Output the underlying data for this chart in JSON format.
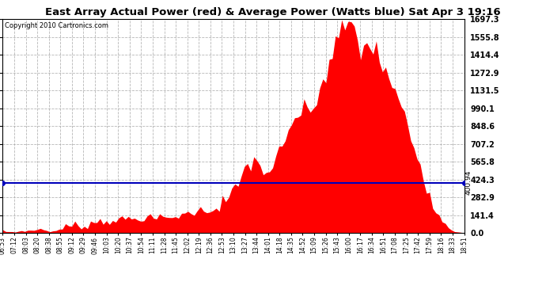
{
  "title": "East Array Actual Power (red) & Average Power (Watts blue) Sat Apr 3 19:16",
  "copyright": "Copyright 2010 Cartronics.com",
  "average_power": 400.94,
  "y_max": 1697.3,
  "y_ticks": [
    0.0,
    141.4,
    282.9,
    424.3,
    565.8,
    707.2,
    848.6,
    990.1,
    1131.5,
    1272.9,
    1414.4,
    1555.8,
    1697.3
  ],
  "background_color": "#ffffff",
  "fill_color": "#ff0000",
  "line_color": "#0000bb",
  "grid_color": "#aaaaaa",
  "title_fontsize": 9.5,
  "copyright_fontsize": 6,
  "tick_fontsize": 5.5,
  "ytick_fontsize": 7,
  "avg_label_fontsize": 6.5,
  "x_labels": [
    "06:53",
    "07:12",
    "08:03",
    "08:20",
    "08:38",
    "08:55",
    "09:12",
    "09:29",
    "09:46",
    "10:03",
    "10:20",
    "10:37",
    "10:54",
    "11:11",
    "11:28",
    "11:45",
    "12:02",
    "12:19",
    "12:36",
    "12:53",
    "13:10",
    "13:27",
    "13:44",
    "14:01",
    "14:18",
    "14:35",
    "14:52",
    "15:09",
    "15:26",
    "15:43",
    "16:00",
    "16:17",
    "16:34",
    "16:51",
    "17:08",
    "17:25",
    "17:42",
    "17:59",
    "18:16",
    "18:33",
    "18:51"
  ],
  "power_values": [
    18,
    15,
    12,
    10,
    12,
    15,
    20,
    22,
    18,
    20,
    25,
    30,
    35,
    28,
    22,
    18,
    15,
    20,
    30,
    40,
    50,
    55,
    60,
    65,
    60,
    55,
    60,
    70,
    80,
    90,
    95,
    100,
    95,
    90,
    100,
    110,
    105,
    100,
    110,
    115,
    120,
    115,
    110,
    115,
    120,
    125,
    130,
    120,
    115,
    120,
    125,
    130,
    125,
    120,
    125,
    135,
    140,
    150,
    160,
    155,
    160,
    170,
    180,
    185,
    180,
    175,
    185,
    195,
    210,
    220,
    240,
    260,
    280,
    300,
    330,
    380,
    440,
    500,
    560,
    600,
    580,
    540,
    520,
    500,
    490,
    510,
    530,
    560,
    600,
    650,
    700,
    780,
    860,
    920,
    960,
    940,
    930,
    950,
    980,
    1020,
    1070,
    1130,
    1200,
    1280,
    1350,
    1420,
    1480,
    1540,
    1590,
    1640,
    1697,
    1660,
    1580,
    1500,
    1450,
    1480,
    1510,
    1490,
    1460,
    1420,
    1380,
    1330,
    1280,
    1220,
    1160,
    1100,
    1040,
    980,
    910,
    840,
    770,
    700,
    620,
    540,
    460,
    390,
    320,
    250,
    190,
    140,
    100,
    70,
    45,
    30,
    18,
    12,
    8,
    5
  ]
}
